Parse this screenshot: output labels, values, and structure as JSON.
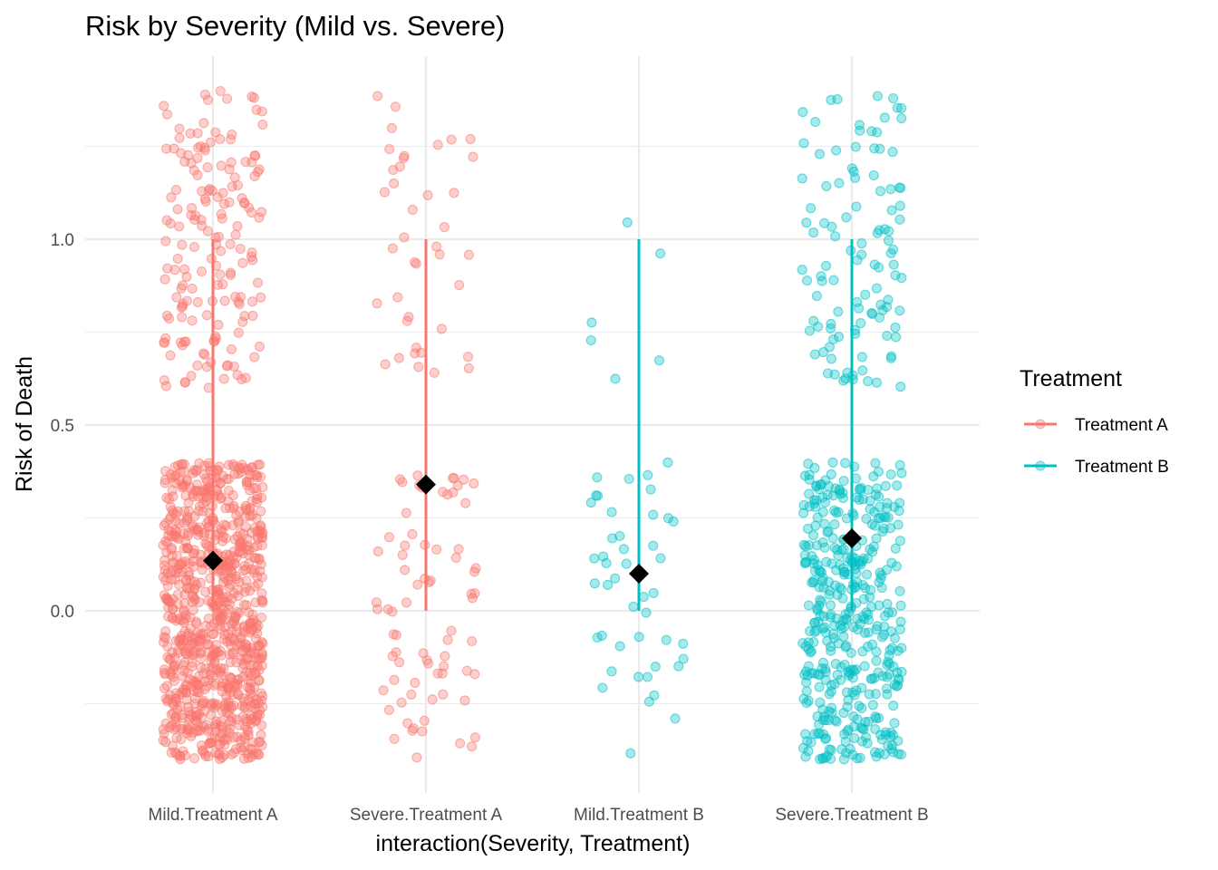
{
  "chart_data": {
    "type": "scatter",
    "title": "Risk by Severity (Mild vs. Severe)",
    "xlabel": "interaction(Severity, Treatment)",
    "ylabel": "Risk of Death",
    "categories": [
      "Mild.Treatment A",
      "Severe.Treatment A",
      "Mild.Treatment B",
      "Severe.Treatment B"
    ],
    "ylim": [
      -0.49,
      1.48
    ],
    "y_ticks": [
      0.0,
      0.5,
      1.0
    ],
    "y_tick_labels": [
      "0.0",
      "0.5",
      "1.0"
    ],
    "grid": true,
    "legend": {
      "title": "Treatment",
      "position": "right",
      "entries": [
        {
          "label": "Treatment A",
          "color": "#F8766D"
        },
        {
          "label": "Treatment B",
          "color": "#00BFC4"
        }
      ]
    },
    "series": [
      {
        "category": "Mild.Treatment A",
        "treatment": "Treatment A",
        "color": "#F8766D",
        "mean": 0.135,
        "range": [
          0.0,
          1.0
        ],
        "jitter_clusters": [
          {
            "y_range": [
              -0.4,
              0.4
            ],
            "count": 900
          },
          {
            "y_range": [
              0.6,
              1.4
            ],
            "count": 170
          }
        ]
      },
      {
        "category": "Severe.Treatment A",
        "treatment": "Treatment A",
        "color": "#F8766D",
        "mean": 0.34,
        "range": [
          0.0,
          1.0
        ],
        "jitter_clusters": [
          {
            "y_range": [
              -0.4,
              0.4
            ],
            "count": 75
          },
          {
            "y_range": [
              0.6,
              1.4
            ],
            "count": 40
          }
        ]
      },
      {
        "category": "Mild.Treatment B",
        "treatment": "Treatment B",
        "color": "#00BFC4",
        "mean": 0.1,
        "range": [
          0.0,
          1.0
        ],
        "jitter_clusters": [
          {
            "y_range": [
              -0.4,
              0.4
            ],
            "count": 45
          },
          {
            "y_range": [
              0.6,
              1.4
            ],
            "count": 6
          }
        ]
      },
      {
        "category": "Severe.Treatment B",
        "treatment": "Treatment B",
        "color": "#00BFC4",
        "mean": 0.195,
        "range": [
          0.0,
          1.0
        ],
        "jitter_clusters": [
          {
            "y_range": [
              -0.4,
              0.4
            ],
            "count": 420
          },
          {
            "y_range": [
              0.6,
              1.4
            ],
            "count": 110
          }
        ]
      }
    ]
  }
}
